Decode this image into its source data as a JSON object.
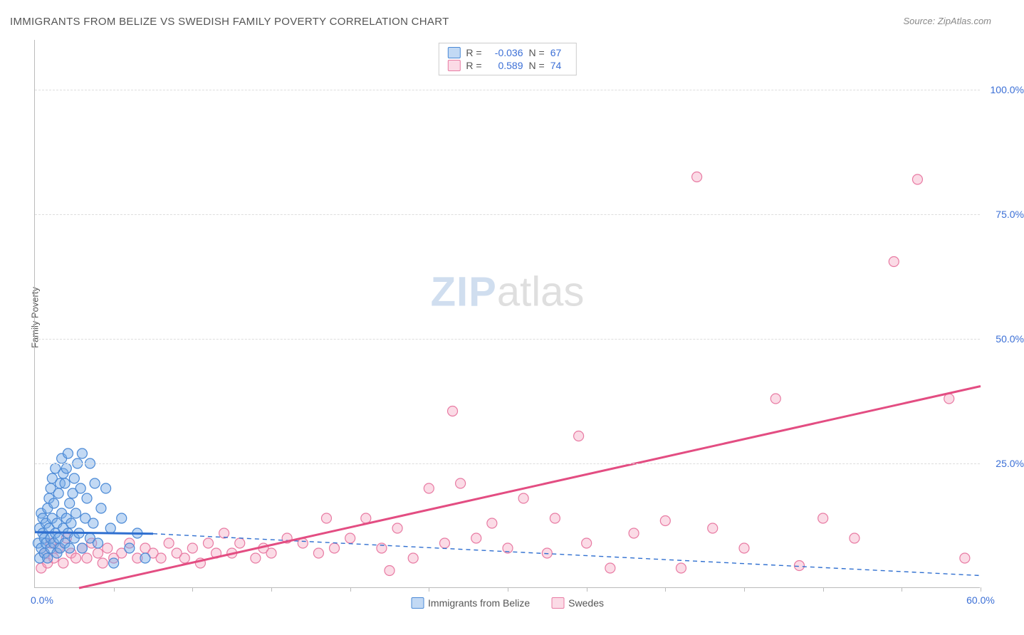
{
  "title": "IMMIGRANTS FROM BELIZE VS SWEDISH FAMILY POVERTY CORRELATION CHART",
  "source": "Source: ZipAtlas.com",
  "watermark_a": "ZIP",
  "watermark_b": "atlas",
  "chart": {
    "type": "scatter",
    "ylabel": "Family Poverty",
    "xlim": [
      0,
      60
    ],
    "ylim": [
      0,
      110
    ],
    "yticks": [
      25,
      50,
      75,
      100
    ],
    "ytick_labels": [
      "25.0%",
      "50.0%",
      "75.0%",
      "100.0%"
    ],
    "xticks": [
      0,
      5,
      10,
      15,
      20,
      25,
      30,
      35,
      40,
      45,
      50,
      55,
      60
    ],
    "xtick_labels_shown": {
      "0": "0.0%",
      "60": "60.0%"
    },
    "background_color": "#ffffff",
    "grid_color": "#dddddd",
    "axis_color": "#bbbbbb",
    "tick_label_color": "#3b6fd6",
    "marker_radius": 7,
    "marker_stroke_width": 1.2,
    "trend_solid_width": 3,
    "trend_dash_width": 1.4,
    "trend_dash_pattern": "6,5"
  },
  "series": {
    "belize": {
      "label": "Immigrants from Belize",
      "fill_color": "rgba(120,170,230,0.45)",
      "stroke_color": "#4a89d6",
      "R": "-0.036",
      "N": "67",
      "trend_solid": {
        "x1": 0,
        "y1": 11.2,
        "x2": 7.5,
        "y2": 10.9,
        "color": "#2f6fd0"
      },
      "trend_dash": {
        "x1": 7.5,
        "y1": 10.9,
        "x2": 60,
        "y2": 2.5,
        "color": "#2f6fd0"
      },
      "points": [
        [
          0.2,
          9
        ],
        [
          0.3,
          6
        ],
        [
          0.3,
          12
        ],
        [
          0.4,
          15
        ],
        [
          0.4,
          8
        ],
        [
          0.5,
          11
        ],
        [
          0.5,
          14
        ],
        [
          0.6,
          10
        ],
        [
          0.6,
          7
        ],
        [
          0.7,
          13
        ],
        [
          0.7,
          9
        ],
        [
          0.8,
          16
        ],
        [
          0.8,
          6
        ],
        [
          0.9,
          18
        ],
        [
          0.9,
          12
        ],
        [
          1.0,
          8
        ],
        [
          1.0,
          20
        ],
        [
          1.0,
          10
        ],
        [
          1.1,
          14
        ],
        [
          1.1,
          22
        ],
        [
          1.2,
          9
        ],
        [
          1.2,
          17
        ],
        [
          1.3,
          11
        ],
        [
          1.3,
          24
        ],
        [
          1.4,
          13
        ],
        [
          1.4,
          7
        ],
        [
          1.5,
          19
        ],
        [
          1.5,
          10
        ],
        [
          1.6,
          21
        ],
        [
          1.6,
          8
        ],
        [
          1.7,
          15
        ],
        [
          1.7,
          26
        ],
        [
          1.8,
          12
        ],
        [
          1.8,
          23
        ],
        [
          1.9,
          9
        ],
        [
          1.9,
          21
        ],
        [
          2.0,
          14
        ],
        [
          2.0,
          24
        ],
        [
          2.1,
          11
        ],
        [
          2.1,
          27
        ],
        [
          2.2,
          17
        ],
        [
          2.2,
          8
        ],
        [
          2.3,
          13
        ],
        [
          2.4,
          19
        ],
        [
          2.5,
          10
        ],
        [
          2.5,
          22
        ],
        [
          2.6,
          15
        ],
        [
          2.7,
          25
        ],
        [
          2.8,
          11
        ],
        [
          2.9,
          20
        ],
        [
          3.0,
          8
        ],
        [
          3.0,
          27
        ],
        [
          3.2,
          14
        ],
        [
          3.3,
          18
        ],
        [
          3.5,
          10
        ],
        [
          3.5,
          25
        ],
        [
          3.7,
          13
        ],
        [
          3.8,
          21
        ],
        [
          4.0,
          9
        ],
        [
          4.2,
          16
        ],
        [
          4.5,
          20
        ],
        [
          4.8,
          12
        ],
        [
          5.0,
          5
        ],
        [
          5.5,
          14
        ],
        [
          6.0,
          8
        ],
        [
          6.5,
          11
        ],
        [
          7.0,
          6
        ]
      ]
    },
    "swedes": {
      "label": "Swedes",
      "fill_color": "rgba(245,160,190,0.38)",
      "stroke_color": "#e87ba3",
      "R": "0.589",
      "N": "74",
      "trend_solid": {
        "x1": 2.8,
        "y1": 0,
        "x2": 60,
        "y2": 40.5,
        "color": "#e34d82"
      },
      "points": [
        [
          0.4,
          4
        ],
        [
          0.6,
          7
        ],
        [
          0.8,
          5
        ],
        [
          1.0,
          9
        ],
        [
          1.2,
          6
        ],
        [
          1.5,
          8
        ],
        [
          1.8,
          5
        ],
        [
          2.0,
          10
        ],
        [
          2.3,
          7
        ],
        [
          2.6,
          6
        ],
        [
          3.0,
          8
        ],
        [
          3.3,
          6
        ],
        [
          3.6,
          9
        ],
        [
          4.0,
          7
        ],
        [
          4.3,
          5
        ],
        [
          4.6,
          8
        ],
        [
          5.0,
          6
        ],
        [
          5.5,
          7
        ],
        [
          6.0,
          9
        ],
        [
          6.5,
          6
        ],
        [
          7.0,
          8
        ],
        [
          7.5,
          7
        ],
        [
          8.0,
          6
        ],
        [
          8.5,
          9
        ],
        [
          9.0,
          7
        ],
        [
          9.5,
          6
        ],
        [
          10,
          8
        ],
        [
          10.5,
          5
        ],
        [
          11,
          9
        ],
        [
          11.5,
          7
        ],
        [
          12,
          11
        ],
        [
          12.5,
          7
        ],
        [
          13,
          9
        ],
        [
          14,
          6
        ],
        [
          14.5,
          8
        ],
        [
          15,
          7
        ],
        [
          16,
          10
        ],
        [
          17,
          9
        ],
        [
          18,
          7
        ],
        [
          18.5,
          14
        ],
        [
          19,
          8
        ],
        [
          20,
          10
        ],
        [
          21,
          14
        ],
        [
          22,
          8
        ],
        [
          22.5,
          3.5
        ],
        [
          23,
          12
        ],
        [
          24,
          6
        ],
        [
          25,
          20
        ],
        [
          26,
          9
        ],
        [
          26.5,
          35.5
        ],
        [
          27,
          21
        ],
        [
          28,
          10
        ],
        [
          29,
          13
        ],
        [
          30,
          8
        ],
        [
          31,
          18
        ],
        [
          32.5,
          7
        ],
        [
          33,
          14
        ],
        [
          34.5,
          30.5
        ],
        [
          35,
          9
        ],
        [
          36.5,
          4
        ],
        [
          38,
          11
        ],
        [
          40,
          13.5
        ],
        [
          41,
          4
        ],
        [
          42,
          82.5
        ],
        [
          43,
          12
        ],
        [
          45,
          8
        ],
        [
          47,
          38
        ],
        [
          48.5,
          4.5
        ],
        [
          50,
          14
        ],
        [
          52,
          10
        ],
        [
          54.5,
          65.5
        ],
        [
          56,
          82
        ],
        [
          58,
          38
        ],
        [
          59,
          6
        ]
      ]
    }
  },
  "stats_legend_labels": {
    "R": "R =",
    "N": "N ="
  },
  "origin_label": "0.0%"
}
